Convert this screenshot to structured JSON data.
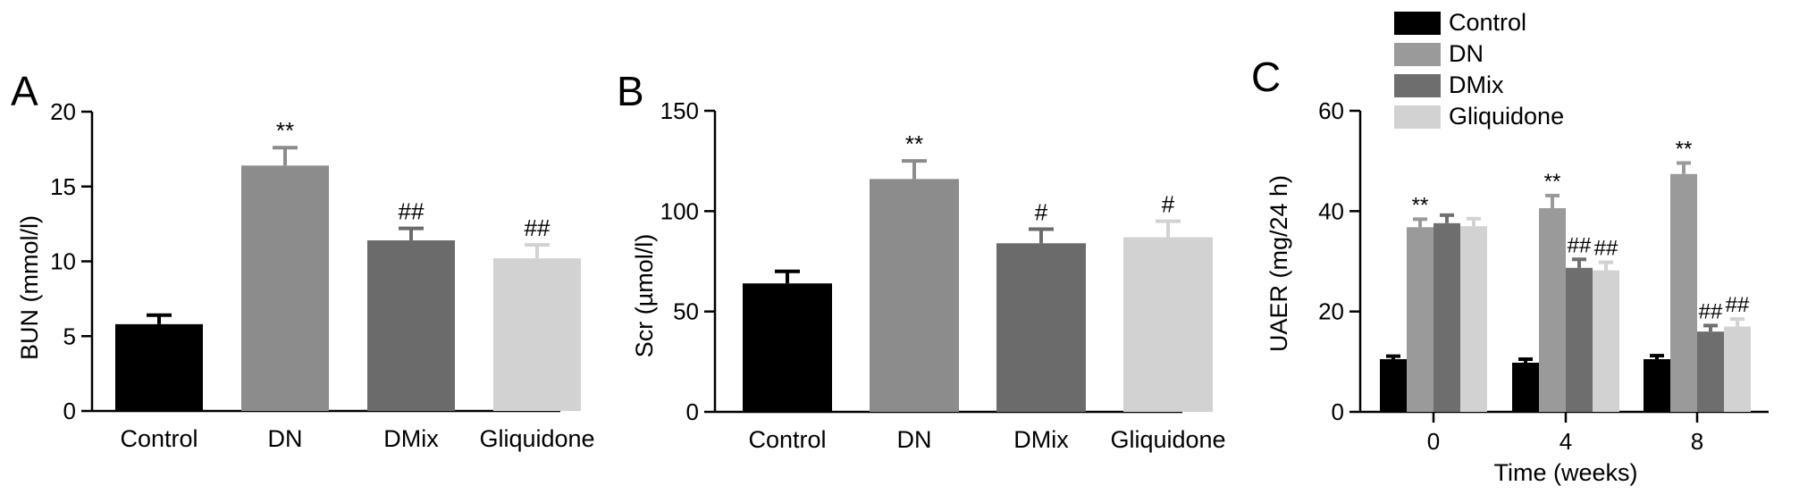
{
  "chart_data": [
    {
      "panel": "A",
      "type": "bar",
      "ylabel": "BUN (mmol/l)",
      "xlabel": "",
      "ylim": [
        0,
        20
      ],
      "yticks": [
        0,
        5,
        10,
        15,
        20
      ],
      "categories": [
        "Control",
        "DN",
        "DMix",
        "Gliquidone"
      ],
      "values": [
        5.8,
        16.4,
        11.4,
        10.2
      ],
      "errors": [
        0.6,
        1.2,
        0.8,
        0.9
      ],
      "annotations": [
        "",
        "**",
        "##",
        "##"
      ],
      "colors": [
        "#000000",
        "#8c8c8c",
        "#6b6b6b",
        "#d2d2d2"
      ]
    },
    {
      "panel": "B",
      "type": "bar",
      "ylabel": "Scr (µmol/l)",
      "xlabel": "",
      "ylim": [
        0,
        150
      ],
      "yticks": [
        0,
        50,
        100,
        150
      ],
      "categories": [
        "Control",
        "DN",
        "DMix",
        "Gliquidone"
      ],
      "values": [
        64,
        116,
        84,
        87
      ],
      "errors": [
        6,
        9,
        7,
        8
      ],
      "annotations": [
        "",
        "**",
        "#",
        "#"
      ],
      "colors": [
        "#000000",
        "#8c8c8c",
        "#6b6b6b",
        "#d2d2d2"
      ]
    },
    {
      "panel": "C",
      "type": "bar",
      "ylabel": "UAER (mg/24 h)",
      "xlabel": "Time (weeks)",
      "ylim": [
        0,
        60
      ],
      "yticks": [
        0,
        20,
        40,
        60
      ],
      "categories": [
        "0",
        "4",
        "8"
      ],
      "legend_position": "top",
      "series": [
        {
          "name": "Control",
          "color": "#000000",
          "values": [
            10.5,
            9.8,
            10.5
          ],
          "errors": [
            0.6,
            0.7,
            0.7
          ],
          "annotations": [
            "",
            "",
            ""
          ]
        },
        {
          "name": "DN",
          "color": "#9a9a9a",
          "values": [
            36.8,
            40.6,
            47.4
          ],
          "errors": [
            1.6,
            2.5,
            2.2
          ],
          "annotations": [
            "**",
            "**",
            "**"
          ]
        },
        {
          "name": "DMix",
          "color": "#6e6e6e",
          "values": [
            37.6,
            28.7,
            16.0
          ],
          "errors": [
            1.6,
            1.7,
            1.2
          ],
          "annotations": [
            "",
            "##",
            "##"
          ]
        },
        {
          "name": "Gliquidone",
          "color": "#d2d2d2",
          "values": [
            37.0,
            28.2,
            17.0
          ],
          "errors": [
            1.5,
            1.6,
            1.5
          ],
          "annotations": [
            "",
            "##",
            "##"
          ]
        }
      ]
    }
  ]
}
